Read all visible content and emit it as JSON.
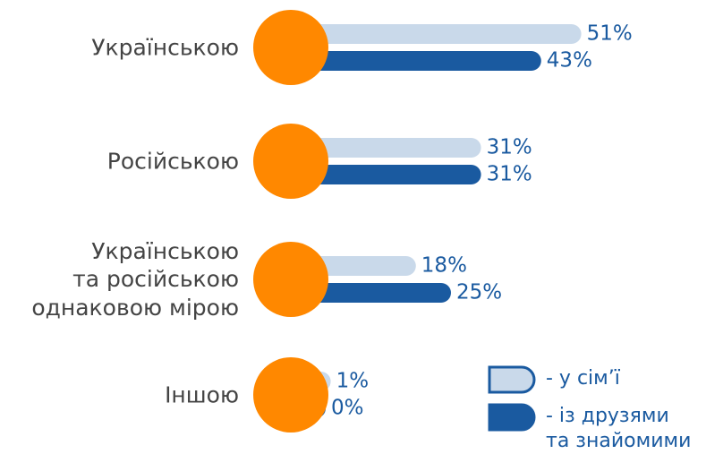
{
  "chart_data": {
    "type": "bar",
    "categories": [
      "Українською",
      "Російською",
      "Українською\nта російською\nоднаковою мірою",
      "Іншою"
    ],
    "series": [
      {
        "name": "- у сім’ї",
        "color": "#c9d9ea",
        "values": [
          51,
          31,
          18,
          1
        ],
        "value_labels": [
          "51%",
          "31%",
          "18%",
          "1%"
        ]
      },
      {
        "name": "- із друзями\nта знайомими",
        "color": "#1a5aa0",
        "values": [
          43,
          31,
          25,
          0
        ],
        "value_labels": [
          "43%",
          "31%",
          "25%",
          "0%"
        ]
      }
    ],
    "marker_color": "#ff8800"
  }
}
